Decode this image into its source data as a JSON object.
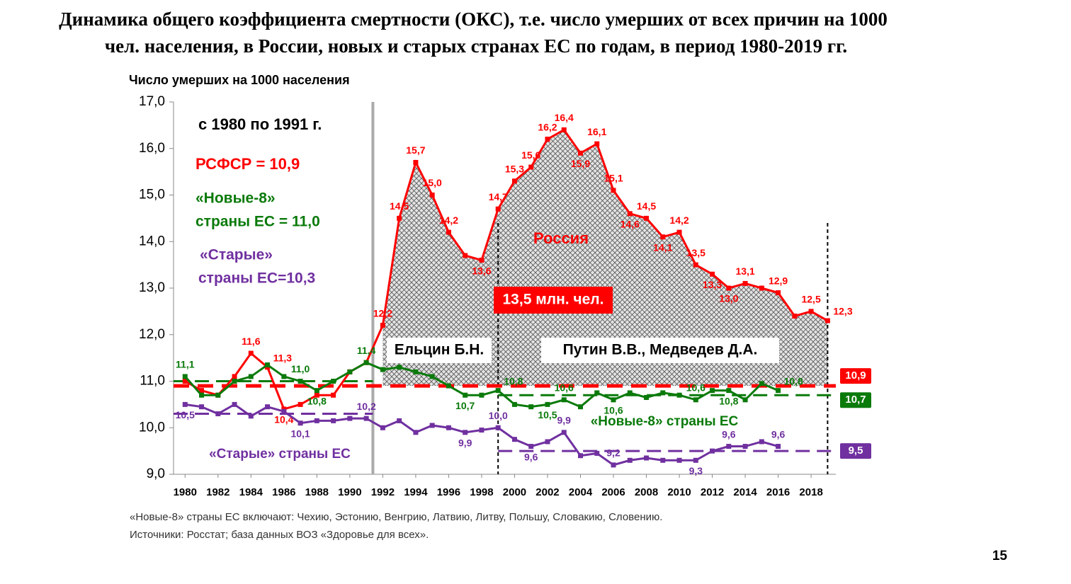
{
  "title_lines": [
    "Динамика общего коэффициента смертности (ОКС), т.е. число умерших от всех причин на 1000",
    "чел. населения, в России, новых и старых странах ЕС по годам, в период 1980-2019 гг."
  ],
  "chart_data": {
    "type": "line",
    "y_label": "Число умерших на 1000 населения",
    "x": [
      1980,
      1981,
      1982,
      1983,
      1984,
      1985,
      1986,
      1987,
      1988,
      1989,
      1990,
      1991,
      1992,
      1993,
      1994,
      1995,
      1996,
      1997,
      1998,
      1999,
      2000,
      2001,
      2002,
      2003,
      2004,
      2005,
      2006,
      2007,
      2008,
      2009,
      2010,
      2011,
      2012,
      2013,
      2014,
      2015,
      2016,
      2017,
      2018,
      2019
    ],
    "xlim": [
      1979.3,
      2019.5
    ],
    "xticks": [
      1980,
      1982,
      1984,
      1986,
      1988,
      1990,
      1992,
      1994,
      1996,
      1998,
      2000,
      2002,
      2004,
      2006,
      2008,
      2010,
      2012,
      2014,
      2016,
      2018
    ],
    "ylim": [
      9,
      17
    ],
    "yticks": [
      {
        "value": 9,
        "label": "9,0"
      },
      {
        "value": 10,
        "label": "10,0"
      },
      {
        "value": 11,
        "label": "11,0"
      },
      {
        "value": 12,
        "label": "12,0"
      },
      {
        "value": 13,
        "label": "13,0"
      },
      {
        "value": 14,
        "label": "14,0"
      },
      {
        "value": 15,
        "label": "15,0"
      },
      {
        "value": 16,
        "label": "16,0"
      },
      {
        "value": 17,
        "label": "17,0"
      }
    ],
    "series": [
      {
        "name": "Россия",
        "color": "#ff0000",
        "values": [
          11.0,
          10.8,
          10.7,
          11.1,
          11.6,
          11.3,
          10.4,
          10.5,
          10.7,
          10.7,
          11.2,
          11.4,
          12.2,
          14.5,
          15.7,
          15.0,
          14.2,
          13.7,
          13.6,
          14.7,
          15.3,
          15.6,
          16.2,
          16.4,
          15.9,
          16.1,
          15.1,
          14.6,
          14.5,
          14.1,
          14.2,
          13.5,
          13.3,
          13.0,
          13.1,
          13.0,
          12.9,
          12.4,
          12.5,
          12.3
        ],
        "value_labels": [
          null,
          null,
          null,
          null,
          "11,6",
          "11,3",
          "10,4",
          null,
          null,
          null,
          null,
          null,
          "12,2",
          "14,5",
          "15,7",
          "15,0",
          "14,2",
          null,
          "13,6",
          "14,7",
          "15,3",
          "15,6",
          "16,2",
          "16,4",
          "15,9",
          "16,1",
          "15,1",
          "14,6",
          "14,5",
          "14,1",
          "14,2",
          "13,5",
          "13,3",
          "13,0",
          "13,1",
          null,
          "12,9",
          null,
          "12,5",
          "12,3"
        ]
      },
      {
        "name": "«Новые-8» страны ЕС",
        "color": "#0a7a0a",
        "values": [
          11.1,
          10.7,
          10.7,
          11.0,
          11.1,
          11.35,
          11.1,
          11.0,
          10.8,
          11.0,
          11.2,
          11.4,
          11.25,
          11.3,
          11.2,
          11.1,
          10.9,
          10.7,
          10.7,
          10.8,
          10.5,
          10.45,
          10.5,
          10.6,
          10.45,
          10.75,
          10.6,
          10.75,
          10.65,
          10.75,
          10.7,
          10.6,
          10.8,
          10.8,
          10.6,
          10.95,
          10.8,
          null,
          null,
          null
        ],
        "value_labels": [
          "11,1",
          null,
          null,
          null,
          null,
          null,
          null,
          "11,0",
          "10,8",
          null,
          null,
          "11,4",
          null,
          null,
          null,
          null,
          null,
          "10,7",
          null,
          "10,8",
          null,
          null,
          "10,5",
          "10,6",
          null,
          null,
          "10,6",
          null,
          null,
          null,
          null,
          "10,6",
          null,
          "10,8",
          null,
          null,
          "10,8",
          null,
          null,
          null
        ]
      },
      {
        "name": "«Старые» страны ЕС",
        "color": "#7030a0",
        "values": [
          10.5,
          10.45,
          10.3,
          10.5,
          10.25,
          10.45,
          10.35,
          10.1,
          10.15,
          10.15,
          10.2,
          10.2,
          10.0,
          10.15,
          9.9,
          10.05,
          10.0,
          9.9,
          9.95,
          10.0,
          9.75,
          9.6,
          9.7,
          9.9,
          9.4,
          9.45,
          9.2,
          9.3,
          9.35,
          9.3,
          9.3,
          9.3,
          9.5,
          9.6,
          9.6,
          9.7,
          9.6,
          null,
          null,
          null
        ],
        "value_labels": [
          "10,5",
          null,
          null,
          null,
          null,
          null,
          null,
          "10,1",
          null,
          null,
          null,
          "10,2",
          null,
          null,
          null,
          null,
          null,
          "9,9",
          null,
          "10,0",
          null,
          "9,6",
          null,
          "9,9",
          null,
          null,
          "9,2",
          null,
          null,
          null,
          null,
          "9,3",
          null,
          "9,6",
          null,
          null,
          "9,6",
          null,
          null,
          null
        ]
      }
    ],
    "reference_lines": [
      {
        "value": 10.9,
        "label": "10,9",
        "color": "#ff0000",
        "from": 1979.3,
        "to": 2019.5
      },
      {
        "value": 11.0,
        "color": "#0a7a0a",
        "from": 1979.3,
        "to": 1991.4
      },
      {
        "value": 10.7,
        "label": "10,7",
        "color": "#0a7a0a",
        "from": 1999,
        "to": 2019.5
      },
      {
        "value": 10.3,
        "color": "#7030a0",
        "from": 1979.3,
        "to": 1991.4
      },
      {
        "value": 9.5,
        "label": "9,5",
        "color": "#7030a0",
        "from": 1999,
        "to": 2019.5
      }
    ],
    "vertical_lines": [
      {
        "x": 1991.4,
        "style": "solid"
      },
      {
        "x": 1999,
        "style": "dashed"
      },
      {
        "x": 2019,
        "style": "dashed"
      }
    ],
    "annotations": [
      "с 1980 по 1991 г.",
      "РСФСР = 10,9",
      "«Новые-8»",
      "страны ЕС = 11,0",
      "«Старые»",
      "страны ЕС=10,3",
      "Россия",
      "13,5 млн. чел.",
      "Ельцин Б.Н.",
      "Путин В.В., Медведев Д.А.",
      "«Новые-8» страны ЕС",
      "«Старые» страны ЕС"
    ]
  },
  "notes": [
    "«Новые-8» страны ЕС включают: Чехию, Эстонию, Венгрию, Латвию, Литву, Польшу, Словакию, Словению.",
    "Источники: Росстат; база данных ВОЗ «Здоровье для всех»."
  ],
  "page_number": "15"
}
